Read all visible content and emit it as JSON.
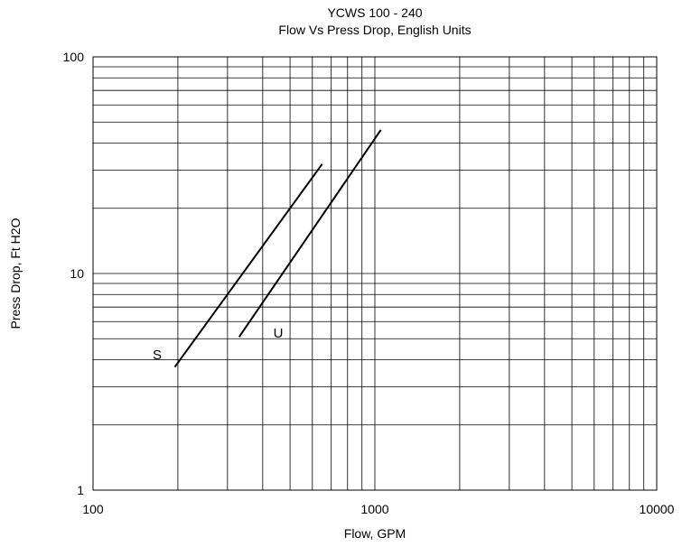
{
  "chart_data": {
    "type": "line",
    "title": "YCWS 100 - 240",
    "subtitle": "Flow Vs Press Drop, English Units",
    "xlabel": "Flow, GPM",
    "ylabel": "Press Drop, Ft H2O",
    "xscale": "log",
    "yscale": "log",
    "xlim": [
      100,
      10000
    ],
    "ylim": [
      1,
      100
    ],
    "x_ticks": [
      "100",
      "1000",
      "10000"
    ],
    "y_ticks": [
      "1",
      "10",
      "100"
    ],
    "grid": true,
    "series": [
      {
        "name": "S",
        "x": [
          195,
          650
        ],
        "y": [
          3.7,
          32
        ]
      },
      {
        "name": "U",
        "x": [
          330,
          1050
        ],
        "y": [
          5.1,
          46
        ]
      }
    ]
  }
}
